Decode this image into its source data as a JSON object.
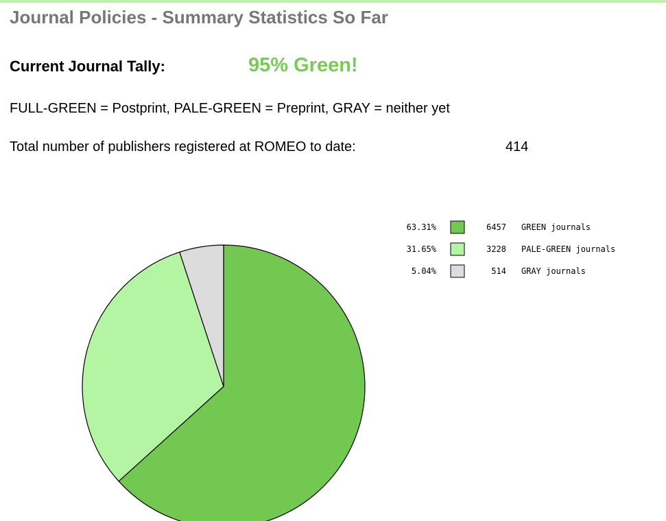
{
  "page_title": "Journal Policies - Summary Statistics So Far",
  "tally_label": "Current Journal Tally:",
  "tally_value": "95% Green!",
  "key_line": "FULL-GREEN = Postprint, PALE-GREEN = Preprint, GRAY = neither yet",
  "publishers_label": "Total number of publishers registered at ROMEO to date:",
  "publishers_count": 414,
  "chart_data": {
    "type": "pie",
    "categories": [
      "GREEN journals",
      "PALE-GREEN journals",
      "GRAY journals"
    ],
    "values": [
      63.31,
      31.65,
      5.04
    ],
    "value_labels": [
      "63.31%",
      "31.65%",
      "5.04%"
    ],
    "counts": [
      6457,
      3228,
      514
    ],
    "colors": [
      "#72c850",
      "#b3f5a3",
      "#dcdcdc"
    ]
  }
}
